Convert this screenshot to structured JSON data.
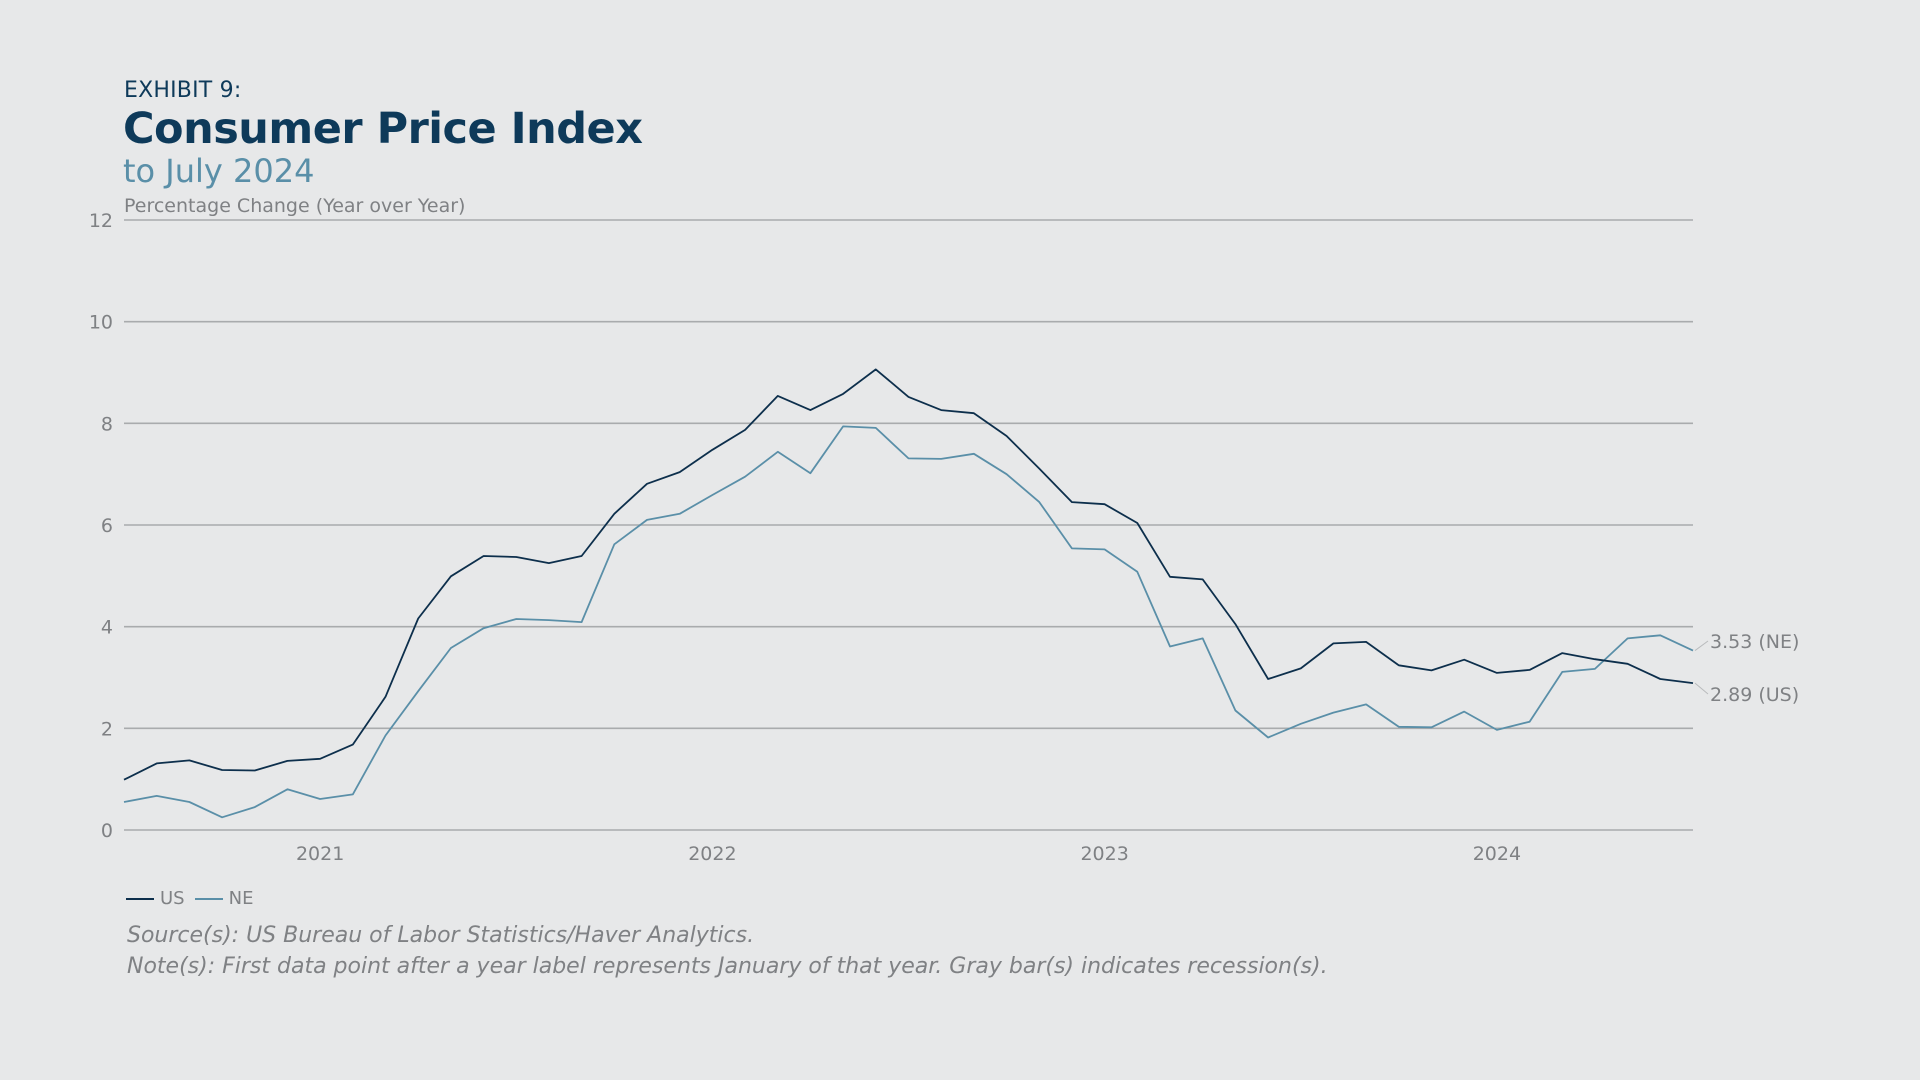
{
  "header": {
    "exhibit": "EXHIBIT 9:",
    "title": "Consumer Price Index",
    "subtitle": "to July 2024"
  },
  "colors": {
    "US": "#0d2f4c",
    "NE": "#5a8fa8",
    "grid": "#a9abad",
    "text": "#7f8184",
    "background": "#e7e8e9"
  },
  "chart_data": {
    "type": "line",
    "ylabel": "Percentage Change (Year over Year)",
    "ylim": [
      0,
      12
    ],
    "yticks": [
      0,
      2,
      4,
      6,
      8,
      10,
      12
    ],
    "grid": true,
    "x": [
      "2020-07",
      "2020-08",
      "2020-09",
      "2020-10",
      "2020-11",
      "2020-12",
      "2021-01",
      "2021-02",
      "2021-03",
      "2021-04",
      "2021-05",
      "2021-06",
      "2021-07",
      "2021-08",
      "2021-09",
      "2021-10",
      "2021-11",
      "2021-12",
      "2022-01",
      "2022-02",
      "2022-03",
      "2022-04",
      "2022-05",
      "2022-06",
      "2022-07",
      "2022-08",
      "2022-09",
      "2022-10",
      "2022-11",
      "2022-12",
      "2023-01",
      "2023-02",
      "2023-03",
      "2023-04",
      "2023-05",
      "2023-06",
      "2023-07",
      "2023-08",
      "2023-09",
      "2023-10",
      "2023-11",
      "2023-12",
      "2024-01",
      "2024-02",
      "2024-03",
      "2024-04",
      "2024-05",
      "2024-06",
      "2024-07"
    ],
    "x_tick_labels": [
      "2021",
      "2022",
      "2023",
      "2024"
    ],
    "x_ticks": [
      "2021-01",
      "2022-01",
      "2023-01",
      "2024-01"
    ],
    "series": [
      {
        "name": "US",
        "end_label": "2.89 (US)",
        "values": [
          0.99,
          1.31,
          1.37,
          1.18,
          1.17,
          1.36,
          1.4,
          1.68,
          2.62,
          4.16,
          4.99,
          5.39,
          5.37,
          5.25,
          5.39,
          6.22,
          6.81,
          7.04,
          7.48,
          7.87,
          8.54,
          8.26,
          8.58,
          9.06,
          8.52,
          8.26,
          8.2,
          7.75,
          7.11,
          6.45,
          6.41,
          6.04,
          4.98,
          4.93,
          4.05,
          2.97,
          3.18,
          3.67,
          3.7,
          3.24,
          3.14,
          3.35,
          3.09,
          3.15,
          3.48,
          3.36,
          3.27,
          2.97,
          2.89
        ]
      },
      {
        "name": "NE",
        "end_label": "3.53 (NE)",
        "values": [
          0.55,
          0.67,
          0.55,
          0.25,
          0.45,
          0.8,
          0.61,
          0.7,
          1.86,
          2.73,
          3.58,
          3.97,
          4.15,
          4.13,
          4.09,
          5.62,
          6.1,
          6.22,
          6.59,
          6.95,
          7.44,
          7.02,
          7.94,
          7.91,
          7.31,
          7.3,
          7.4,
          7.0,
          6.45,
          5.54,
          5.52,
          5.08,
          3.61,
          3.77,
          2.35,
          1.82,
          2.09,
          2.31,
          2.47,
          2.03,
          2.02,
          2.33,
          1.97,
          2.13,
          3.11,
          3.17,
          3.77,
          3.83,
          3.53
        ]
      }
    ]
  },
  "legend": [
    {
      "label": "US"
    },
    {
      "label": "NE"
    }
  ],
  "footer": {
    "source": "Source(s): US Bureau of Labor Statistics/Haver Analytics.",
    "note": "Note(s): First data point after a year label represents January of that year. Gray bar(s) indicates recession(s)."
  }
}
